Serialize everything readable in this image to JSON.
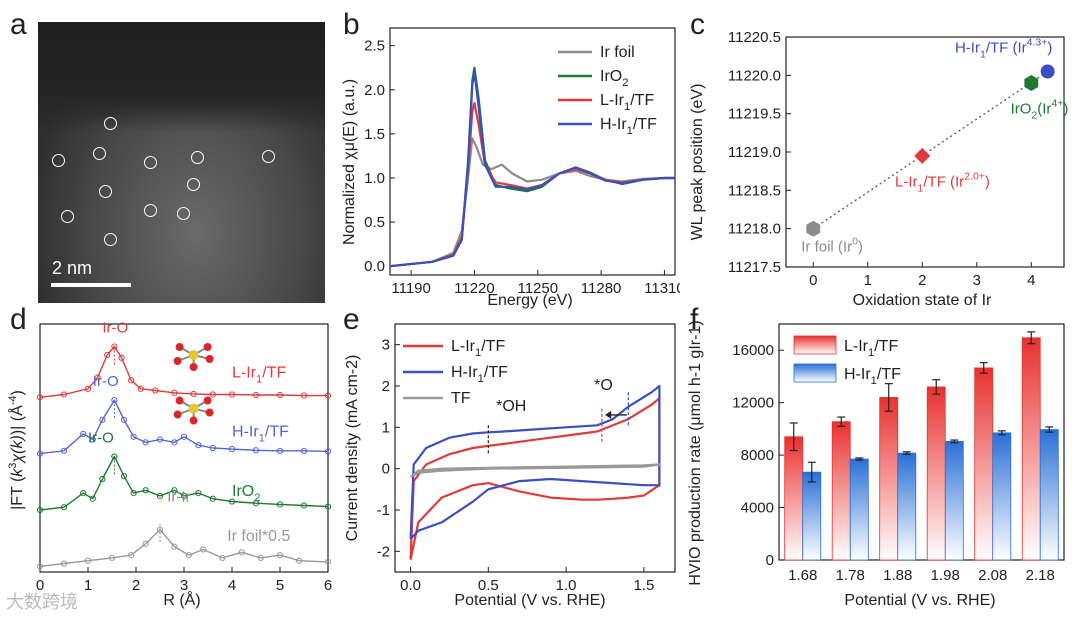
{
  "panel_labels": [
    "a",
    "b",
    "c",
    "d",
    "e",
    "f"
  ],
  "tem": {
    "scale_label": "2 nm"
  },
  "watermark": "大数跨境",
  "chart_data": [
    {
      "id": "b",
      "type": "line",
      "xlabel": "Energy (eV)",
      "ylabel": "Normalized χμ(E) (a.u.)",
      "xlim": [
        11180,
        11315
      ],
      "ylim": [
        -0.1,
        2.7
      ],
      "xticks": [
        11190,
        11220,
        11250,
        11280,
        11310
      ],
      "yticks": [
        0.0,
        0.5,
        1.0,
        1.5,
        2.0,
        2.5
      ],
      "legend_position": "top-right",
      "series": [
        {
          "name": "Ir foil",
          "color": "#8c8c8c",
          "x": [
            11180,
            11200,
            11210,
            11214,
            11217,
            11219,
            11221,
            11224,
            11228,
            11233,
            11238,
            11245,
            11252,
            11260,
            11268,
            11275,
            11282,
            11290,
            11300,
            11310,
            11315
          ],
          "y": [
            0.0,
            0.05,
            0.15,
            0.4,
            1.0,
            1.45,
            1.35,
            1.15,
            1.1,
            1.15,
            1.05,
            0.96,
            0.98,
            1.05,
            1.08,
            1.02,
            0.98,
            0.96,
            0.99,
            1.0,
            1.0
          ]
        },
        {
          "name": "IrO2",
          "color": "#1f7a30",
          "x": [
            11180,
            11200,
            11210,
            11214,
            11217,
            11219,
            11220,
            11222,
            11225,
            11230,
            11237,
            11245,
            11252,
            11260,
            11268,
            11275,
            11282,
            11290,
            11300,
            11310,
            11315
          ],
          "y": [
            0.0,
            0.05,
            0.12,
            0.3,
            1.2,
            2.1,
            2.25,
            1.9,
            1.2,
            0.92,
            0.88,
            0.85,
            0.9,
            1.05,
            1.12,
            1.06,
            0.98,
            0.93,
            0.98,
            1.0,
            1.0
          ]
        },
        {
          "name": "L-Ir1/TF",
          "color": "#e03a3a",
          "x": [
            11180,
            11200,
            11210,
            11214,
            11217,
            11219,
            11220,
            11222,
            11225,
            11230,
            11237,
            11245,
            11252,
            11260,
            11268,
            11275,
            11282,
            11290,
            11300,
            11310,
            11315
          ],
          "y": [
            0.0,
            0.05,
            0.13,
            0.33,
            1.1,
            1.75,
            1.85,
            1.6,
            1.15,
            0.95,
            0.92,
            0.88,
            0.92,
            1.05,
            1.1,
            1.05,
            0.98,
            0.95,
            0.98,
            1.0,
            1.0
          ]
        },
        {
          "name": "H-Ir1/TF",
          "color": "#3a4fc4",
          "x": [
            11180,
            11200,
            11210,
            11214,
            11217,
            11219,
            11220,
            11222,
            11225,
            11230,
            11237,
            11245,
            11252,
            11260,
            11268,
            11275,
            11282,
            11290,
            11300,
            11310,
            11315
          ],
          "y": [
            0.0,
            0.05,
            0.12,
            0.3,
            1.15,
            2.05,
            2.2,
            1.8,
            1.15,
            0.9,
            0.9,
            0.87,
            0.92,
            1.05,
            1.12,
            1.05,
            0.97,
            0.94,
            0.98,
            1.0,
            1.0
          ]
        }
      ]
    },
    {
      "id": "c",
      "type": "scatter",
      "xlabel": "Oxidation state of Ir",
      "ylabel": "WL peak position (eV)",
      "xlim": [
        -0.5,
        4.6
      ],
      "ylim": [
        11217.5,
        11220.5
      ],
      "xticks": [
        0,
        1,
        2,
        3,
        4
      ],
      "yticks": [
        11217.5,
        11218.0,
        11218.5,
        11219.0,
        11219.5,
        11220.0,
        11220.5
      ],
      "points": [
        {
          "label": "Ir foil (Ir0)",
          "x": 0,
          "y": 11218.0,
          "color": "#8c8c8c",
          "marker": "hexagon"
        },
        {
          "label": "L-Ir1/TF (Ir2.0+)",
          "x": 2.0,
          "y": 11218.95,
          "color": "#e03a3a",
          "marker": "diamond"
        },
        {
          "label": "IrO2(Ir4+)",
          "x": 4.0,
          "y": 11219.9,
          "color": "#1f7a30",
          "marker": "hexagon"
        },
        {
          "label": "H-Ir1/TF (Ir4.3+)",
          "x": 4.3,
          "y": 11220.05,
          "color": "#3a4fc4",
          "marker": "circle"
        }
      ],
      "fit_line": {
        "x": [
          0,
          4.3
        ],
        "y": [
          11218.0,
          11220.05
        ]
      }
    },
    {
      "id": "d",
      "type": "line",
      "xlabel": "R (Å)",
      "ylabel": "|FT (k3χ(k))| (Å-4)",
      "xlim": [
        0,
        6
      ],
      "xticks": [
        0,
        1,
        2,
        3,
        4,
        5,
        6
      ],
      "annotations": [
        "Ir-O",
        "Ir-O",
        "Ir-O",
        "Ir-Ir"
      ],
      "series": [
        {
          "name": "L-Ir1/TF",
          "color": "#e03a3a",
          "offset": 3.0,
          "x": [
            0,
            0.5,
            1.0,
            1.2,
            1.4,
            1.55,
            1.7,
            1.9,
            2.1,
            2.4,
            2.8,
            3.2,
            3.6,
            4,
            4.5,
            5,
            5.5,
            6
          ],
          "y": [
            0,
            0.05,
            0.15,
            0.35,
            0.75,
            0.9,
            0.7,
            0.3,
            0.15,
            0.12,
            0.08,
            0.06,
            0.05,
            0.05,
            0.04,
            0.04,
            0.03,
            0.03
          ]
        },
        {
          "name": "H-Ir1/TF",
          "color": "#5567d0",
          "offset": 2.0,
          "x": [
            0,
            0.5,
            0.9,
            1.1,
            1.3,
            1.55,
            1.75,
            1.95,
            2.2,
            2.5,
            2.8,
            3.0,
            3.3,
            3.6,
            4,
            4.5,
            5,
            5.5,
            6
          ],
          "y": [
            0,
            0.05,
            0.35,
            0.25,
            0.6,
            0.95,
            0.6,
            0.3,
            0.2,
            0.25,
            0.2,
            0.3,
            0.15,
            0.1,
            0.08,
            0.06,
            0.05,
            0.05,
            0.04
          ]
        },
        {
          "name": "IrO2",
          "color": "#1f7a30",
          "offset": 1.0,
          "x": [
            0,
            0.5,
            0.9,
            1.1,
            1.3,
            1.55,
            1.75,
            1.95,
            2.2,
            2.5,
            2.8,
            3.0,
            3.3,
            3.6,
            4,
            4.5,
            5,
            5.5,
            6
          ],
          "y": [
            0,
            0.05,
            0.3,
            0.2,
            0.55,
            0.95,
            0.6,
            0.3,
            0.35,
            0.25,
            0.35,
            0.25,
            0.3,
            0.2,
            0.15,
            0.12,
            0.1,
            0.08,
            0.06
          ]
        },
        {
          "name": "Ir foil*0.5",
          "color": "#9a9a9a",
          "offset": 0.0,
          "x": [
            0,
            0.5,
            1.0,
            1.5,
            1.9,
            2.2,
            2.5,
            2.8,
            3.1,
            3.4,
            3.8,
            4.2,
            4.6,
            5,
            5.4,
            6
          ],
          "y": [
            0,
            0.05,
            0.1,
            0.15,
            0.2,
            0.4,
            0.65,
            0.35,
            0.2,
            0.3,
            0.15,
            0.25,
            0.15,
            0.2,
            0.1,
            0.08
          ]
        }
      ]
    },
    {
      "id": "e",
      "type": "line",
      "xlabel": "Potential (V vs. RHE)",
      "ylabel": "Current density (mA cm-2)",
      "xlim": [
        -0.1,
        1.7
      ],
      "ylim": [
        -2.5,
        3.5
      ],
      "xticks": [
        0.0,
        0.5,
        1.0,
        1.5
      ],
      "yticks": [
        -2,
        -1,
        0,
        1,
        2,
        3
      ],
      "annotations": [
        "*OH",
        "*O"
      ],
      "series": [
        {
          "name": "L-Ir1/TF",
          "color": "#e03a3a",
          "x": [
            0.0,
            0.05,
            0.2,
            0.4,
            0.5,
            0.7,
            0.9,
            1.1,
            1.2,
            1.3,
            1.4,
            1.5,
            1.6,
            1.6,
            1.55,
            1.4,
            1.2,
            1.0,
            0.8,
            0.6,
            0.5,
            0.4,
            0.25,
            0.1,
            0.02,
            0.0
          ],
          "y": [
            -2.2,
            -1.3,
            -0.7,
            -0.4,
            -0.35,
            -0.55,
            -0.7,
            -0.75,
            -0.75,
            -0.73,
            -0.7,
            -0.65,
            -0.4,
            1.7,
            1.55,
            1.2,
            0.9,
            0.8,
            0.7,
            0.6,
            0.55,
            0.5,
            0.35,
            0.1,
            -0.3,
            -2.2
          ]
        },
        {
          "name": "H-Ir1/TF",
          "color": "#3a4fc4",
          "x": [
            0.0,
            0.05,
            0.2,
            0.4,
            0.5,
            0.7,
            0.9,
            1.1,
            1.3,
            1.5,
            1.6,
            1.6,
            1.55,
            1.4,
            1.3,
            1.2,
            1.0,
            0.8,
            0.6,
            0.5,
            0.4,
            0.25,
            0.1,
            0.02,
            0.0
          ],
          "y": [
            -1.7,
            -1.5,
            -1.3,
            -0.8,
            -0.5,
            -0.3,
            -0.25,
            -0.3,
            -0.35,
            -0.4,
            -0.4,
            2.0,
            1.85,
            1.5,
            1.2,
            1.05,
            1.0,
            0.95,
            0.9,
            0.88,
            0.85,
            0.75,
            0.5,
            0.1,
            -1.7
          ]
        },
        {
          "name": "TF",
          "color": "#999999",
          "x": [
            0.0,
            0.05,
            0.2,
            0.5,
            1.0,
            1.5,
            1.6,
            1.6,
            1.5,
            1.0,
            0.5,
            0.2,
            0.05,
            0.0
          ],
          "y": [
            -0.2,
            -0.1,
            -0.05,
            0.0,
            0.02,
            0.05,
            0.1,
            0.1,
            0.08,
            0.05,
            0.02,
            0.0,
            -0.05,
            -0.2
          ]
        }
      ]
    },
    {
      "id": "f",
      "type": "bar",
      "xlabel": "Potential (V vs. RHE)",
      "ylabel": "HVIO production rate (μmol h-1 gIr-1)",
      "ylim": [
        0,
        18000
      ],
      "yticks": [
        0,
        4000,
        8000,
        12000,
        16000
      ],
      "categories": [
        "1.68",
        "1.78",
        "1.88",
        "1.98",
        "2.08",
        "2.18"
      ],
      "legend_position": "top-left",
      "series": [
        {
          "name": "L-Ir1/TF",
          "color": "#e8312f",
          "values": [
            9400,
            10550,
            12400,
            13200,
            14650,
            16950
          ],
          "errors": [
            1050,
            350,
            1050,
            550,
            400,
            450
          ]
        },
        {
          "name": "H-Ir1/TF",
          "color": "#2a6fd6",
          "values": [
            6700,
            7700,
            8150,
            9050,
            9700,
            9950
          ],
          "errors": [
            750,
            80,
            100,
            100,
            150,
            200
          ]
        }
      ]
    }
  ]
}
